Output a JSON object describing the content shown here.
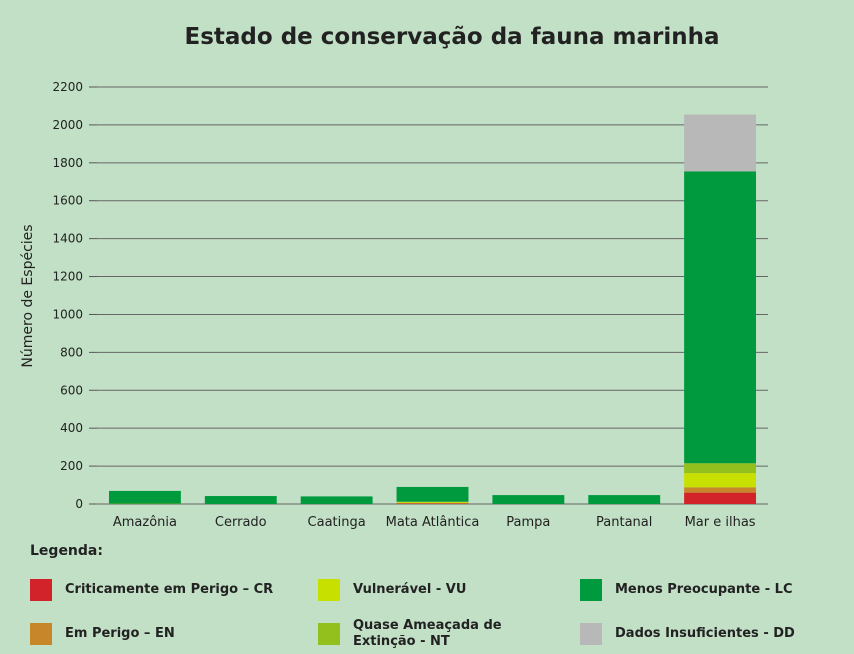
{
  "chart_data": {
    "type": "stacked_bar",
    "title": "Estado de conservação da fauna marinha",
    "ylabel": "Número de Espécies",
    "legend_title": "Legenda:",
    "categories": [
      "Amazônia",
      "Cerrado",
      "Caatinga",
      "Mata Atlântica",
      "Pampa",
      "Pantanal",
      "Mar e ilhas"
    ],
    "series": [
      {
        "name": "Criticamente em Perigo – CR",
        "color": "#d2232a",
        "values": [
          0,
          0,
          0,
          2,
          0,
          0,
          60
        ]
      },
      {
        "name": "Em Perigo – EN",
        "color": "#c8862a",
        "values": [
          0,
          0,
          0,
          3,
          0,
          0,
          28
        ]
      },
      {
        "name": "Vulnerável - VU",
        "color": "#c8e000",
        "values": [
          1,
          0,
          0,
          5,
          0,
          0,
          75
        ]
      },
      {
        "name": "Quase Ameaçada de Extinção - NT",
        "color": "#94c01e",
        "values": [
          1,
          0,
          0,
          2,
          0,
          0,
          52
        ]
      },
      {
        "name": "Menos Preocupante - LC",
        "color": "#009a3e",
        "values": [
          67,
          42,
          40,
          78,
          47,
          47,
          1540
        ]
      },
      {
        "name": "Dados Insuficientes - DD",
        "color": "#b8b8b8",
        "values": [
          0,
          0,
          0,
          0,
          0,
          0,
          300
        ]
      }
    ],
    "ylim": [
      0,
      2200
    ],
    "yticks": [
      0,
      200,
      400,
      600,
      800,
      1000,
      1200,
      1400,
      1600,
      1800,
      2000,
      2200
    ],
    "grid": true
  }
}
